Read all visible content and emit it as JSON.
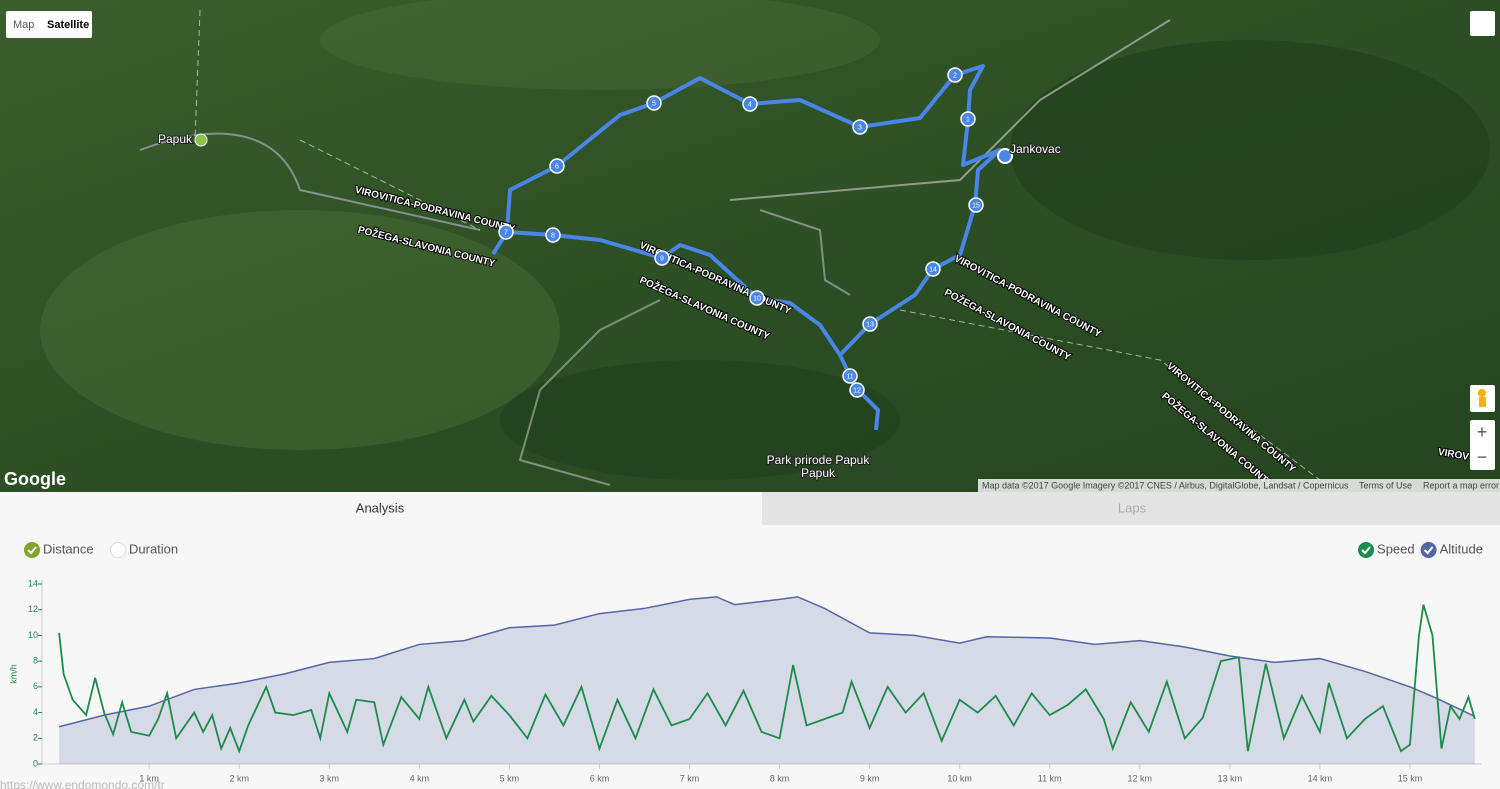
{
  "map": {
    "buttons": [
      "Map",
      "Satellite"
    ],
    "places": [
      "Papuk",
      "Jankovac",
      "Park prirode Papuk"
    ],
    "county_labels": [
      "VIROVITICA-PODRAVINA COUNTY",
      "POŽEGA-SLAVONIA COUNTY",
      "VIROVITICA-PODRAVINA COUNTY",
      "POŽEGA-SLAVONIA COUNTY",
      "VIROVITICA-PODRAVINA COUNTY",
      "POŽEGA-SLAVONIA COUNTY",
      "VIROVITICA-PODRAVINA COUNTY",
      "POŽEGA-SLAVONIA COUNTY",
      "VIROV"
    ],
    "route_markers": [
      "1",
      "2",
      "3",
      "4",
      "5",
      "6",
      "7",
      "8",
      "9",
      "10",
      "11",
      "12",
      "13",
      "14",
      "15"
    ],
    "logo": "Google",
    "attribution": [
      "Map data ©2017 Google Imagery ©2017 CNES / Airbus, DigitalGlobe, Landsat / Copernicus",
      "Terms of Use",
      "Report a map error"
    ],
    "zoom": [
      "+",
      "−"
    ]
  },
  "tabs": [
    "Analysis",
    "Laps"
  ],
  "x_modes": [
    "Distance",
    "Duration"
  ],
  "footer_url": "https://www.endomondo.com/tr",
  "chart_data": {
    "type": "line",
    "y_label": "km/h",
    "xlim": [
      -0.19,
      15.8
    ],
    "ylim": [
      0,
      14
    ],
    "yticks": [
      0,
      2,
      4,
      6,
      8,
      10,
      12,
      14
    ],
    "xticks": [
      {
        "value": 1,
        "label": "1 km"
      },
      {
        "value": 2,
        "label": "2 km"
      },
      {
        "value": 3,
        "label": "3 km"
      },
      {
        "value": 4,
        "label": "4 km"
      },
      {
        "value": 5,
        "label": "5 km"
      },
      {
        "value": 6,
        "label": "6 km"
      },
      {
        "value": 7,
        "label": "7 km"
      },
      {
        "value": 8,
        "label": "8 km"
      },
      {
        "value": 9,
        "label": "9 km"
      },
      {
        "value": 10,
        "label": "10 km"
      },
      {
        "value": 11,
        "label": "11 km"
      },
      {
        "value": 12,
        "label": "12 km"
      },
      {
        "value": 13,
        "label": "13 km"
      },
      {
        "value": 14,
        "label": "14 km"
      },
      {
        "value": 15,
        "label": "15 km"
      }
    ],
    "series": [
      {
        "name": "Speed",
        "color": "#1c8c4a",
        "area": false,
        "x": [
          0,
          0.05,
          0.15,
          0.3,
          0.4,
          0.5,
          0.6,
          0.7,
          0.8,
          1.0,
          1.1,
          1.2,
          1.3,
          1.5,
          1.6,
          1.7,
          1.8,
          1.9,
          2.0,
          2.1,
          2.2,
          2.3,
          2.4,
          2.6,
          2.8,
          2.9,
          3.0,
          3.2,
          3.3,
          3.5,
          3.6,
          3.8,
          4.0,
          4.1,
          4.3,
          4.5,
          4.6,
          4.8,
          5.0,
          5.2,
          5.4,
          5.6,
          5.8,
          6.0,
          6.2,
          6.4,
          6.6,
          6.8,
          7.0,
          7.2,
          7.4,
          7.6,
          7.8,
          8.0,
          8.15,
          8.3,
          8.5,
          8.7,
          8.8,
          9.0,
          9.2,
          9.4,
          9.6,
          9.8,
          10.0,
          10.2,
          10.4,
          10.6,
          10.8,
          11.0,
          11.2,
          11.4,
          11.6,
          11.7,
          11.9,
          12.1,
          12.3,
          12.5,
          12.7,
          12.9,
          13.1,
          13.2,
          13.4,
          13.6,
          13.8,
          14.0,
          14.1,
          14.3,
          14.5,
          14.7,
          14.9,
          15.0,
          15.1,
          15.15,
          15.25,
          15.35,
          15.45,
          15.55,
          15.65,
          15.72
        ],
        "values": [
          10.2,
          7,
          5,
          3.8,
          6.7,
          4,
          2.3,
          4.8,
          2.5,
          2.2,
          3.5,
          5.5,
          2.0,
          4.0,
          2.5,
          3.8,
          1.2,
          2.8,
          1.0,
          3.0,
          4.5,
          6.0,
          4.0,
          3.8,
          4.2,
          2.0,
          5.5,
          2.5,
          5.0,
          4.8,
          1.5,
          5.2,
          3.5,
          6.0,
          2.0,
          5.0,
          3.3,
          5.3,
          3.8,
          2.0,
          5.4,
          3.0,
          6.0,
          1.2,
          5.0,
          2.0,
          5.8,
          3.0,
          3.5,
          5.5,
          3.0,
          5.7,
          2.5,
          2.0,
          7.7,
          3.0,
          3.5,
          4.0,
          6.4,
          2.8,
          6.0,
          4.0,
          5.5,
          1.8,
          5.0,
          4.0,
          5.3,
          3.0,
          5.5,
          3.8,
          4.6,
          5.8,
          3.5,
          1.2,
          4.8,
          2.5,
          6.4,
          2.0,
          3.6,
          8.0,
          8.3,
          1.0,
          7.8,
          2.0,
          5.3,
          2.5,
          6.3,
          2.0,
          3.5,
          4.5,
          1.0,
          1.5,
          10.0,
          12.4,
          10.0,
          1.2,
          4.5,
          3.5,
          5.2,
          3.5
        ]
      },
      {
        "name": "Altitude",
        "color": "#5565a6",
        "area": true,
        "x": [
          0,
          0.5,
          1.0,
          1.5,
          2.0,
          2.5,
          3.0,
          3.5,
          4.0,
          4.5,
          5.0,
          5.5,
          6.0,
          6.5,
          7.0,
          7.3,
          7.5,
          8.0,
          8.2,
          8.5,
          9.0,
          9.5,
          10.0,
          10.3,
          11.0,
          11.5,
          12.0,
          12.5,
          13.0,
          13.5,
          14.0,
          14.5,
          15.0,
          15.3,
          15.72
        ],
        "values": [
          2.9,
          3.8,
          4.5,
          5.8,
          6.3,
          7.0,
          7.9,
          8.2,
          9.3,
          9.6,
          10.6,
          10.8,
          11.7,
          12.1,
          12.8,
          13.0,
          12.4,
          12.8,
          13.0,
          12.1,
          10.2,
          10.0,
          9.4,
          9.9,
          9.8,
          9.3,
          9.6,
          9.1,
          8.4,
          7.9,
          8.2,
          7.2,
          6.0,
          5.1,
          3.7
        ]
      }
    ]
  }
}
